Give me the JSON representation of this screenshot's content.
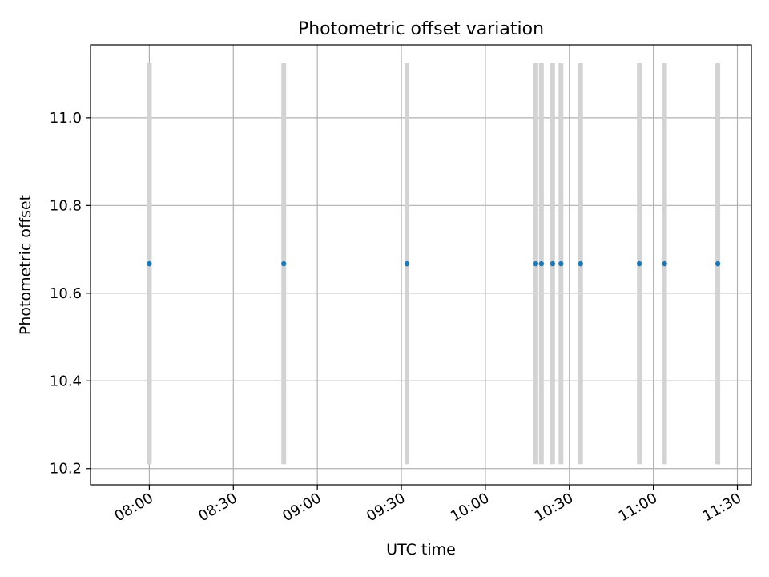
{
  "chart_data": {
    "type": "scatter",
    "title": "Photometric offset variation",
    "xlabel": "UTC time",
    "ylabel": "Photometric offset",
    "x_axis_type": "time",
    "xlim": [
      "07:39",
      "11:35"
    ],
    "ylim": [
      10.163,
      11.166
    ],
    "x_ticks": [
      "08:00",
      "08:30",
      "09:00",
      "09:30",
      "10:00",
      "10:30",
      "11:00",
      "11:30"
    ],
    "y_ticks": [
      10.2,
      10.4,
      10.6,
      10.8,
      11.0
    ],
    "y_tick_labels": [
      "10.2",
      "10.4",
      "10.6",
      "10.8",
      "11.0"
    ],
    "grid": true,
    "marker_color": "#1f77b4",
    "bar_color": "#d3d3d3",
    "series": [
      {
        "x": [
          "08:00",
          "08:48",
          "09:32",
          "10:18",
          "10:20",
          "10:24",
          "10:27",
          "10:34",
          "10:55",
          "11:04",
          "11:23"
        ],
        "y": [
          10.667,
          10.667,
          10.667,
          10.667,
          10.667,
          10.667,
          10.667,
          10.667,
          10.667,
          10.667,
          10.667
        ],
        "error_low": [
          10.21,
          10.21,
          10.21,
          10.21,
          10.21,
          10.21,
          10.21,
          10.21,
          10.21,
          10.21,
          10.21
        ],
        "error_high": [
          11.124,
          11.124,
          11.124,
          11.124,
          11.124,
          11.124,
          11.124,
          11.124,
          11.124,
          11.124,
          11.124
        ]
      }
    ]
  }
}
